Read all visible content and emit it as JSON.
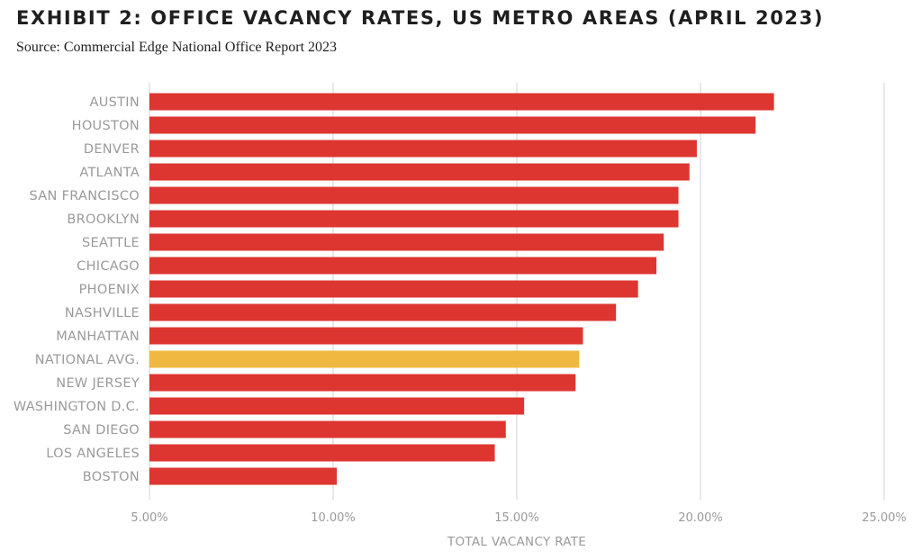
{
  "header": {
    "title": "EXHIBIT 2: OFFICE VACANCY RATES, US METRO AREAS (APRIL 2023)",
    "subtitle": "Source: Commercial Edge National Office Report 2023"
  },
  "colors": {
    "bar": "#dd3630",
    "highlight": "#f0b840",
    "grid": "#d2d2d2",
    "label": "#9a9a9a"
  },
  "chart_data": {
    "type": "bar",
    "orientation": "horizontal",
    "title": "EXHIBIT 2: OFFICE VACANCY RATES, US METRO AREAS (APRIL 2023)",
    "subtitle": "Source: Commercial Edge National Office Report 2023",
    "xlabel": "TOTAL VACANCY RATE",
    "ylabel": "",
    "categories": [
      "AUSTIN",
      "HOUSTON",
      "DENVER",
      "ATLANTA",
      "SAN FRANCISCO",
      "BROOKLYN",
      "SEATTLE",
      "CHICAGO",
      "PHOENIX",
      "NASHVILLE",
      "MANHATTAN",
      "NATIONAL AVG.",
      "NEW JERSEY",
      "WASHINGTON D.C.",
      "SAN DIEGO",
      "LOS ANGELES",
      "BOSTON"
    ],
    "values": [
      22.0,
      21.5,
      19.9,
      19.7,
      19.4,
      19.4,
      19.0,
      18.8,
      18.3,
      17.7,
      16.8,
      16.7,
      16.6,
      15.2,
      14.7,
      14.4,
      10.1
    ],
    "highlight_category": "NATIONAL AVG.",
    "xlim": [
      5,
      25
    ],
    "xticks": [
      5,
      10,
      15,
      20,
      25
    ],
    "xtick_labels": [
      "5.00%",
      "10.00%",
      "15.00%",
      "20.00%",
      "25.00%"
    ],
    "grid": "vertical",
    "legend": "none"
  }
}
